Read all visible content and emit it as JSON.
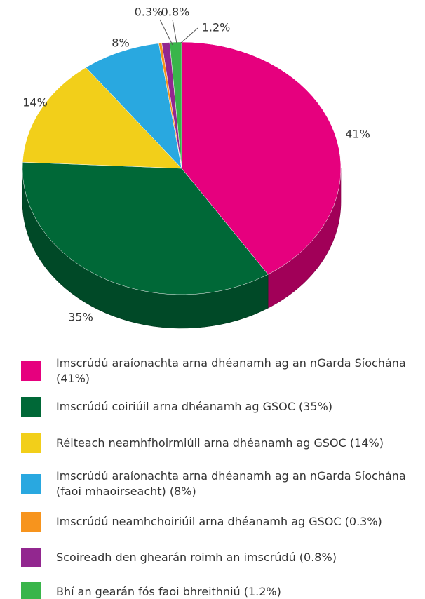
{
  "chart_data": {
    "type": "pie",
    "categories": [
      "Imscrúdú araíonachta arna dhéanamh ag an nGarda Síochána (41%)",
      "Imscrúdú coiriúil arna dhéanamh ag GSOC (35%)",
      "Réiteach neamhfhoirmiúil arna dhéanamh ag GSOC (14%)",
      "Imscrúdú araíonachta arna dhéanamh ag an nGarda Síochána (faoi mhaoirseacht) (8%)",
      "Imscrúdú neamhchoiriúil arna dhéanamh ag GSOC (0.3%)",
      "Scoireadh den ghearán roimh an imscrúdú (0.8%)",
      "Bhí an gearán fós faoi bhreithniú (1.2%)"
    ],
    "values": [
      41,
      35,
      14,
      8,
      0.3,
      0.8,
      1.2
    ],
    "value_labels": [
      "41%",
      "35%",
      "14%",
      "8%",
      "0.3%",
      "0.8%",
      "1.2%"
    ],
    "colors": [
      "#e6007e",
      "#006837",
      "#f2cf1a",
      "#29a8e0",
      "#f7941d",
      "#92278f",
      "#39b54a"
    ]
  }
}
